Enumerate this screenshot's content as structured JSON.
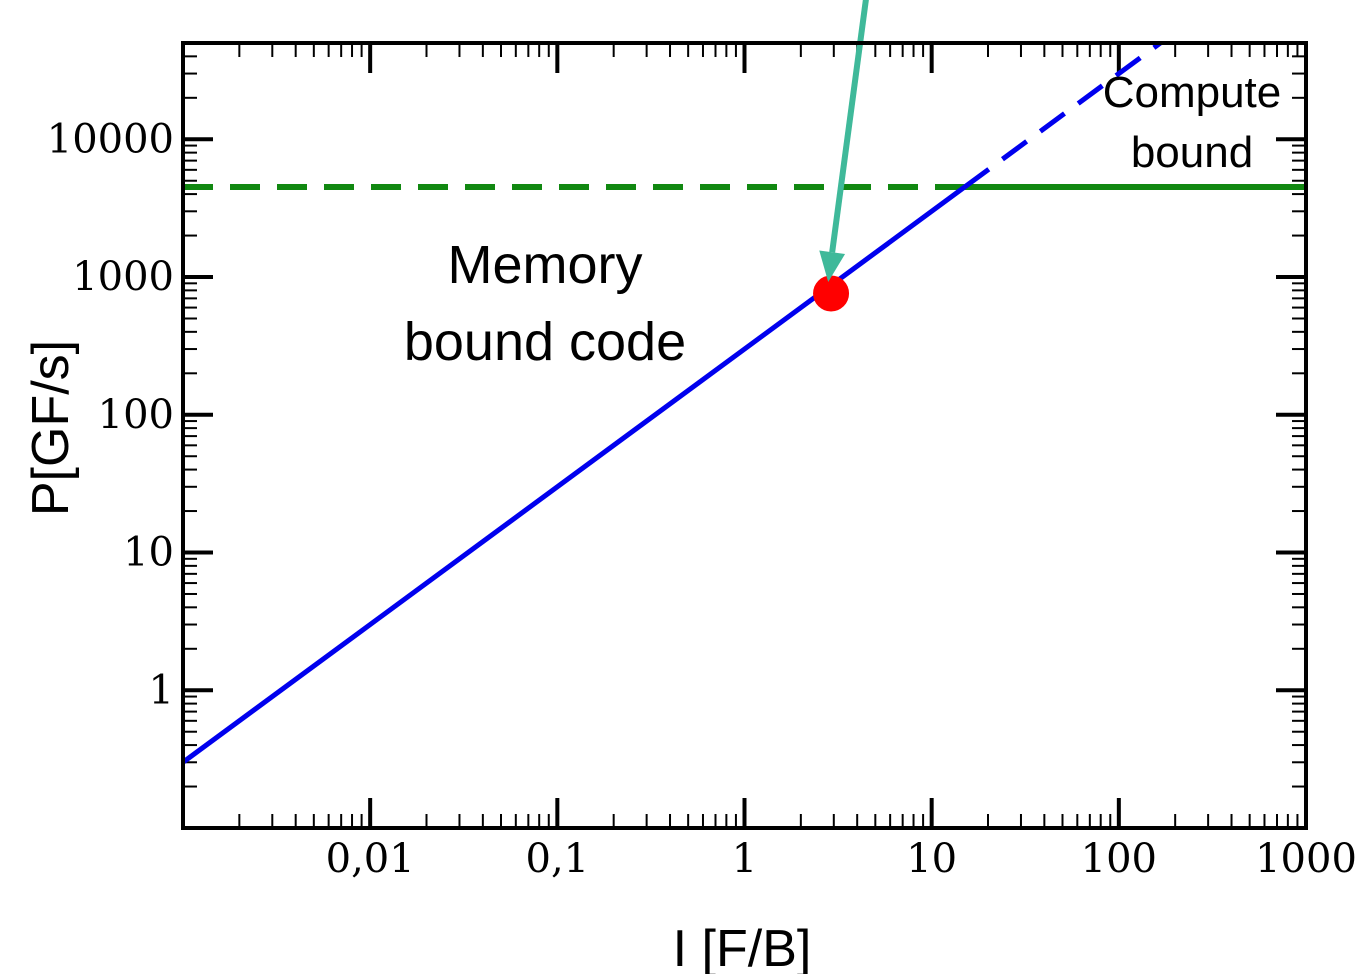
{
  "chart_data": {
    "type": "line",
    "title": "",
    "xlabel": "I [F/B]",
    "ylabel": "P[GF/s]",
    "x_scale": "log",
    "y_scale": "log",
    "xlim": [
      0.001,
      1000
    ],
    "ylim": [
      0.1,
      50000
    ],
    "x_ticks": [
      {
        "value": 0.01,
        "label": "0,01"
      },
      {
        "value": 0.1,
        "label": "0,1"
      },
      {
        "value": 1,
        "label": "1"
      },
      {
        "value": 10,
        "label": "10"
      },
      {
        "value": 100,
        "label": "100"
      },
      {
        "value": 1000,
        "label": "1000"
      }
    ],
    "y_ticks": [
      {
        "value": 1,
        "label": "1"
      },
      {
        "value": 10,
        "label": "10"
      },
      {
        "value": 100,
        "label": "100"
      },
      {
        "value": 1000,
        "label": "1000"
      },
      {
        "value": 10000,
        "label": "10000"
      }
    ],
    "grid": false,
    "series": [
      {
        "kind": "bandwidth-roof",
        "color": "#0000ee",
        "solid": {
          "x": [
            0.001,
            15
          ],
          "y": [
            0.3,
            4500
          ]
        },
        "dashed": {
          "x": [
            15,
            200
          ],
          "y": [
            4500,
            60000
          ]
        }
      },
      {
        "kind": "compute-roof",
        "color": "#118811",
        "dashed": {
          "x": [
            0.001,
            15
          ],
          "y": [
            4500,
            4500
          ]
        },
        "solid": {
          "x": [
            15,
            1000
          ],
          "y": [
            4500,
            4500
          ]
        }
      }
    ],
    "point": {
      "x": 2.9,
      "y": 760,
      "color": "#ff0000"
    },
    "arrow": {
      "from": {
        "x": 5.2,
        "y": 500000
      },
      "to": {
        "x": 2.8,
        "y": 920
      },
      "color": "#3fb99a"
    },
    "annotations": {
      "memory_line1": "Memory",
      "memory_line2": "bound code",
      "compute_line1": "Compute",
      "compute_line2": "bound"
    }
  }
}
